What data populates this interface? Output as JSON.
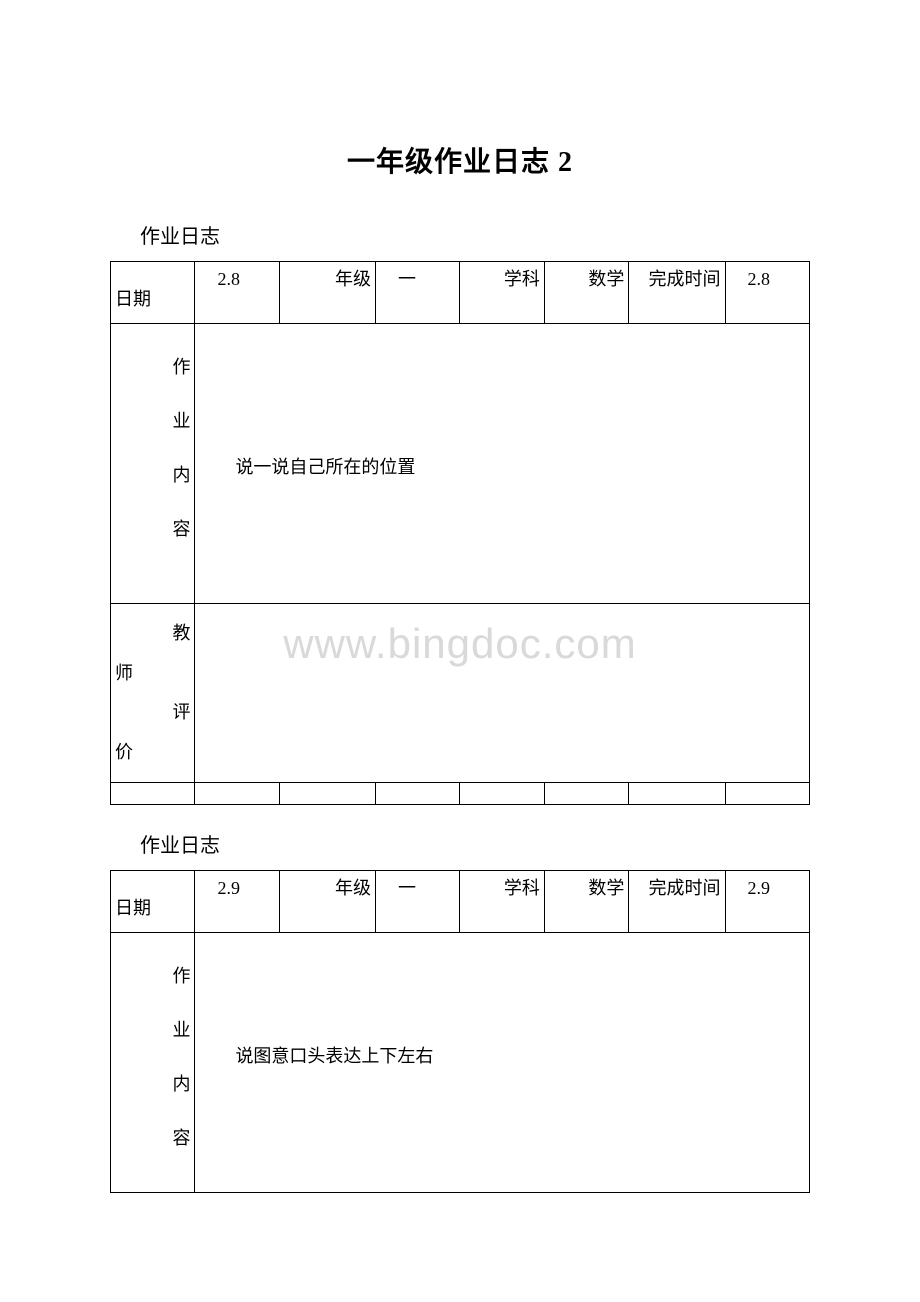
{
  "page_title": "一年级作业日志 2",
  "watermark": "www.bingdoc.com",
  "log1": {
    "section_label": "作业日志",
    "headers": {
      "date": "日期",
      "date_val": "2.8",
      "grade": "年级",
      "grade_val": "一",
      "subject": "学科",
      "subject_val": "数学",
      "time": "完成时间",
      "time_val": "2.8"
    },
    "content_label_1": "作",
    "content_label_2": "业",
    "content_label_3": "内",
    "content_label_4": "容",
    "content_text": "说一说自己所在的位置",
    "teacher_label_1": "教",
    "teacher_label_2": "师",
    "teacher_label_3": "评",
    "teacher_label_4": "价"
  },
  "log2": {
    "section_label": "作业日志",
    "headers": {
      "date": "日期",
      "date_val": "2.9",
      "grade": "年级",
      "grade_val": "一",
      "subject": "学科",
      "subject_val": "数学",
      "time": "完成时间",
      "time_val": "2.9"
    },
    "content_label_1": "作",
    "content_label_2": "业",
    "content_label_3": "内",
    "content_label_4": "容",
    "content_text": "说图意口头表达上下左右"
  }
}
